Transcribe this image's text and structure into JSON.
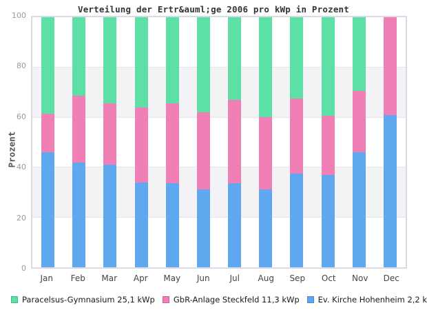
{
  "chart_data": {
    "type": "bar",
    "stacked": true,
    "title": "Verteilung der Ertr&auml;ge 2006 pro kWp in Prozent",
    "ylabel": "Prozent",
    "xlabel": "",
    "ylim": [
      0,
      100
    ],
    "yticks": [
      0,
      20,
      40,
      60,
      80,
      100
    ],
    "grid": "alternating horizontal gray bands every 20 units",
    "legend_position": "bottom",
    "categories": [
      "Jan",
      "Feb",
      "Mar",
      "Apr",
      "May",
      "Jun",
      "Jul",
      "Aug",
      "Sep",
      "Oct",
      "Nov",
      "Dec"
    ],
    "series": [
      {
        "name": "Ev. Kirche Hohenheim 2,2 kWp",
        "color": "#5fa8f0",
        "stack_position": "bottom",
        "values": [
          46,
          42,
          41,
          34,
          33.5,
          31,
          33.5,
          31,
          37.5,
          37,
          46,
          61
        ]
      },
      {
        "name": "GbR-Anlage Steckfeld 11,3 kWp",
        "color": "#f07fb5",
        "stack_position": "middle",
        "values": [
          15.5,
          26.5,
          24.5,
          30,
          32,
          31,
          33.5,
          29,
          30,
          23.5,
          24.5,
          39
        ]
      },
      {
        "name": "Paracelsus-Gymnasium 25,1 kWp",
        "color": "#5ce0a6",
        "stack_position": "top",
        "values": [
          38.5,
          31.5,
          34.5,
          36,
          34.5,
          38,
          33,
          40,
          32.5,
          39.5,
          29.5,
          0
        ]
      }
    ]
  },
  "legend": {
    "items": [
      {
        "label": "Paracelsus-Gymnasium 25,1 kWp",
        "color": "#5ce0a6",
        "border": "#3fbc86"
      },
      {
        "label": "GbR-Anlage Steckfeld 11,3 kWp",
        "color": "#f07fb5",
        "border": "#d25d9b"
      },
      {
        "label": "Ev. Kirche Hohenheim 2,2 kWp",
        "color": "#5fa8f0",
        "border": "#4387d2"
      }
    ]
  },
  "colors": {
    "band_gray": "#f3f3f5",
    "gridline": "#e6e6e6",
    "plot_border": "#d9d9e8",
    "tick_label": "#999999",
    "axis_label": "#444444",
    "title_text": "#333333"
  }
}
